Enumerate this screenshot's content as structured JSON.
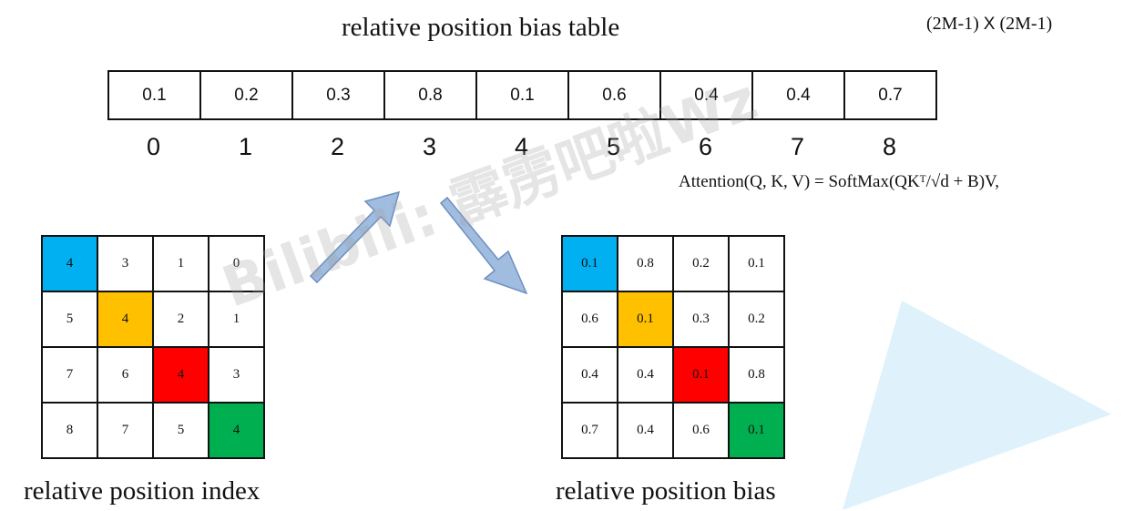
{
  "title": "relative position bias table",
  "dims_left": "(2M-1)",
  "dims_x": "X",
  "dims_right": "(2M-1)",
  "bias_table": [
    "0.1",
    "0.2",
    "0.3",
    "0.8",
    "0.1",
    "0.6",
    "0.4",
    "0.4",
    "0.7"
  ],
  "bias_indices": [
    "0",
    "1",
    "2",
    "3",
    "4",
    "5",
    "6",
    "7",
    "8"
  ],
  "formula": "Attention(Q, K, V) = SoftMax(QKᵀ/√d + B)V,",
  "index_matrix": [
    [
      "4",
      "3",
      "1",
      "0"
    ],
    [
      "5",
      "4",
      "2",
      "1"
    ],
    [
      "7",
      "6",
      "4",
      "3"
    ],
    [
      "8",
      "7",
      "5",
      "4"
    ]
  ],
  "bias_matrix": [
    [
      "0.1",
      "0.8",
      "0.2",
      "0.1"
    ],
    [
      "0.6",
      "0.1",
      "0.3",
      "0.2"
    ],
    [
      "0.4",
      "0.4",
      "0.1",
      "0.8"
    ],
    [
      "0.7",
      "0.4",
      "0.6",
      "0.1"
    ]
  ],
  "diagonal_colors": [
    "#00b0f0",
    "#ffc000",
    "#ff0000",
    "#00b050"
  ],
  "arrow_color": "#8fb0d8",
  "triangle_color": "#dff2fc",
  "caption_left": "relative position index",
  "caption_right": "relative position bias",
  "watermark": "Bilibili: 霹雳吧啦Wz"
}
